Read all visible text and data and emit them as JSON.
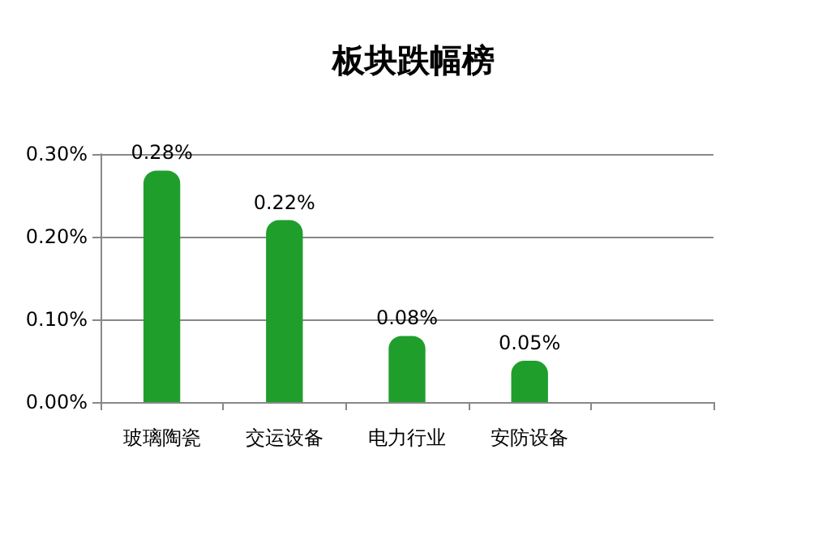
{
  "chart_data": {
    "type": "bar",
    "title": "板块跌幅榜",
    "categories": [
      "玻璃陶瓷",
      "交运设备",
      "电力行业",
      "安防设备",
      null
    ],
    "values": [
      0.28,
      0.22,
      0.08,
      0.05,
      null
    ],
    "value_labels": [
      "0.28%",
      "0.22%",
      "0.08%",
      "0.05%",
      null
    ],
    "color": "#1f9e2c",
    "ylim": [
      0,
      0.3
    ],
    "yticks": [
      {
        "value": 0,
        "label": "0.00%"
      },
      {
        "value": 0.1,
        "label": "0.10%"
      },
      {
        "value": 0.2,
        "label": "0.20%"
      },
      {
        "value": 0.3,
        "label": "0.30%"
      }
    ],
    "grid": "y"
  }
}
